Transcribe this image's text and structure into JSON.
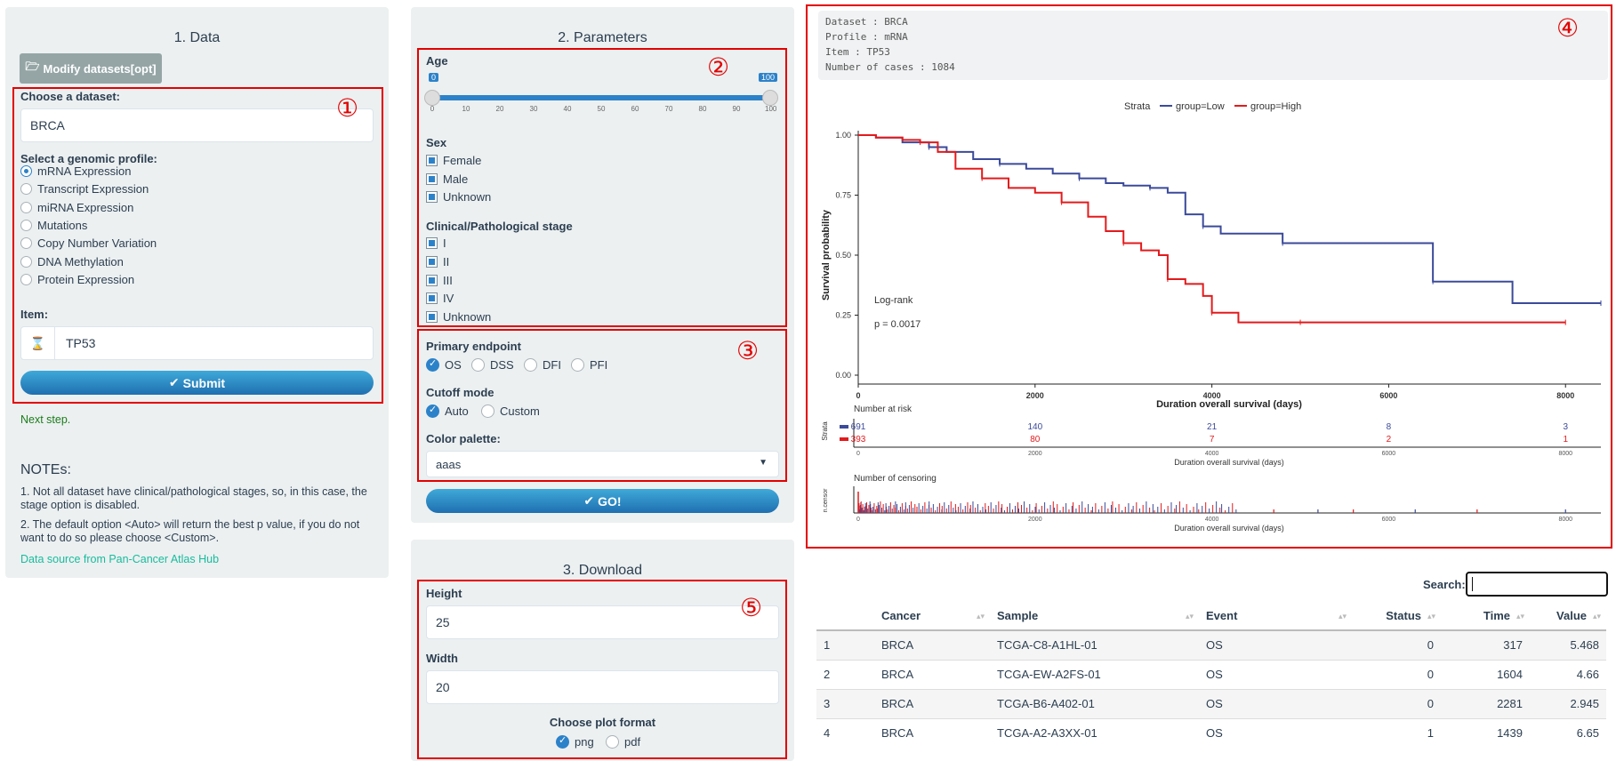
{
  "data_panel": {
    "title": "1. Data",
    "modify_button": "Modify datasets[opt]",
    "dataset_label": "Choose a dataset:",
    "dataset_value": "BRCA",
    "profile_label": "Select a genomic profile:",
    "profiles": [
      {
        "label": "mRNA Expression",
        "selected": true
      },
      {
        "label": "Transcript Expression",
        "selected": false
      },
      {
        "label": "miRNA Expression",
        "selected": false
      },
      {
        "label": "Mutations",
        "selected": false
      },
      {
        "label": "Copy Number Variation",
        "selected": false
      },
      {
        "label": "DNA Methylation",
        "selected": false
      },
      {
        "label": "Protein Expression",
        "selected": false
      }
    ],
    "item_label": "Item:",
    "item_value": "TP53",
    "submit_label": "Submit",
    "next_step": "Next step.",
    "notes_title": "NOTEs:",
    "note1": "1. Not all dataset have clinical/pathological stages, so, in this case, the stage option is disabled.",
    "note2": "2. The default option <Auto> will return the best p value, if you do not want to do so please choose <Custom>.",
    "source_link": "Data source from Pan-Cancer Atlas Hub"
  },
  "params_panel": {
    "title": "2. Parameters",
    "age_label": "Age",
    "age_min": "0",
    "age_max": "100",
    "age_ticks": [
      "0",
      "10",
      "20",
      "30",
      "40",
      "50",
      "60",
      "70",
      "80",
      "90",
      "100"
    ],
    "sex_label": "Sex",
    "sex_options": [
      "Female",
      "Male",
      "Unknown"
    ],
    "stage_label": "Clinical/Pathological stage",
    "stage_options": [
      "I",
      "II",
      "III",
      "IV",
      "Unknown"
    ],
    "endpoint_label": "Primary endpoint",
    "endpoints": [
      {
        "label": "OS",
        "selected": true
      },
      {
        "label": "DSS",
        "selected": false
      },
      {
        "label": "DFI",
        "selected": false
      },
      {
        "label": "PFI",
        "selected": false
      }
    ],
    "cutoff_label": "Cutoff mode",
    "cutoff_options": [
      {
        "label": "Auto",
        "selected": true
      },
      {
        "label": "Custom",
        "selected": false
      }
    ],
    "palette_label": "Color palette:",
    "palette_value": "aaas",
    "go_label": "GO!"
  },
  "download_panel": {
    "title": "3. Download",
    "height_label": "Height",
    "height_value": "25",
    "width_label": "Width",
    "width_value": "20",
    "format_label": "Choose plot format",
    "formats": [
      {
        "label": "png",
        "selected": true
      },
      {
        "label": "pdf",
        "selected": false
      }
    ]
  },
  "markers": [
    "①",
    "②",
    "③",
    "④",
    "⑤"
  ],
  "plot_info": {
    "dataset": "Dataset : BRCA",
    "profile": "Profile : mRNA",
    "item": "Item : TP53",
    "cases": "Number of cases : 1084"
  },
  "colors": {
    "low": "#3b4a9a",
    "high": "#e31a1c",
    "accent": "#2c82c9",
    "red_box": "#e30000"
  },
  "chart_data": {
    "type": "line",
    "xlabel": "Duration overall survival (days)",
    "ylabel": "Survival probability",
    "legend_title": "Strata",
    "legend_position": "top",
    "xlim": [
      0,
      8400
    ],
    "ylim": [
      0,
      1
    ],
    "x_ticks": [
      "0",
      "2000",
      "4000",
      "6000",
      "8000"
    ],
    "y_ticks": [
      "0.00",
      "0.25",
      "0.50",
      "0.75",
      "1.00"
    ],
    "annotation_1": "Log-rank",
    "annotation_2": "p = 0.0017",
    "series": [
      {
        "name": "group=Low",
        "color": "#3b4a9a",
        "x": [
          0,
          200,
          500,
          800,
          1000,
          1300,
          1600,
          1900,
          2200,
          2500,
          2800,
          3000,
          3300,
          3500,
          3700,
          3900,
          4100,
          4300,
          4800,
          5500,
          6400,
          6500,
          6800,
          7400,
          8400
        ],
        "y": [
          1.0,
          0.99,
          0.97,
          0.95,
          0.93,
          0.9,
          0.88,
          0.86,
          0.84,
          0.82,
          0.8,
          0.79,
          0.78,
          0.76,
          0.67,
          0.62,
          0.59,
          0.59,
          0.55,
          0.55,
          0.55,
          0.39,
          0.39,
          0.3,
          0.3
        ]
      },
      {
        "name": "group=High",
        "color": "#e31a1c",
        "x": [
          0,
          200,
          500,
          700,
          900,
          1100,
          1400,
          1700,
          2000,
          2300,
          2600,
          2800,
          3000,
          3200,
          3400,
          3500,
          3700,
          3900,
          4000,
          4200,
          4300,
          5000,
          6000,
          7000,
          8000
        ],
        "y": [
          1.0,
          0.99,
          0.98,
          0.97,
          0.93,
          0.86,
          0.82,
          0.78,
          0.76,
          0.72,
          0.66,
          0.6,
          0.55,
          0.52,
          0.5,
          0.4,
          0.38,
          0.33,
          0.26,
          0.26,
          0.22,
          0.22,
          0.22,
          0.22,
          0.22
        ]
      }
    ],
    "risk_table": {
      "title": "Number at risk",
      "strata_label": "Strata",
      "x_ticks": [
        "0",
        "2000",
        "4000",
        "6000",
        "8000"
      ],
      "xlabel": "Duration overall survival (days)",
      "low": [
        "691",
        "140",
        "21",
        "8",
        "3"
      ],
      "high": [
        "393",
        "80",
        "7",
        "2",
        "1"
      ]
    },
    "censor_plot": {
      "title": "Number of censoring",
      "ylabel": "n.censor",
      "x_ticks": [
        "0",
        "2000",
        "4000",
        "6000",
        "8000"
      ],
      "xlabel": "Duration overall survival (days)"
    }
  },
  "table": {
    "search_label": "Search:",
    "search_value": "",
    "headers": [
      "",
      "Cancer",
      "Sample",
      "Event",
      "Status",
      "Time",
      "Value"
    ],
    "rows": [
      [
        "1",
        "BRCA",
        "TCGA-C8-A1HL-01",
        "OS",
        "0",
        "317",
        "5.468"
      ],
      [
        "2",
        "BRCA",
        "TCGA-EW-A2FS-01",
        "OS",
        "0",
        "1604",
        "4.66"
      ],
      [
        "3",
        "BRCA",
        "TCGA-B6-A402-01",
        "OS",
        "0",
        "2281",
        "2.945"
      ],
      [
        "4",
        "BRCA",
        "TCGA-A2-A3XX-01",
        "OS",
        "1",
        "1439",
        "6.65"
      ]
    ]
  }
}
